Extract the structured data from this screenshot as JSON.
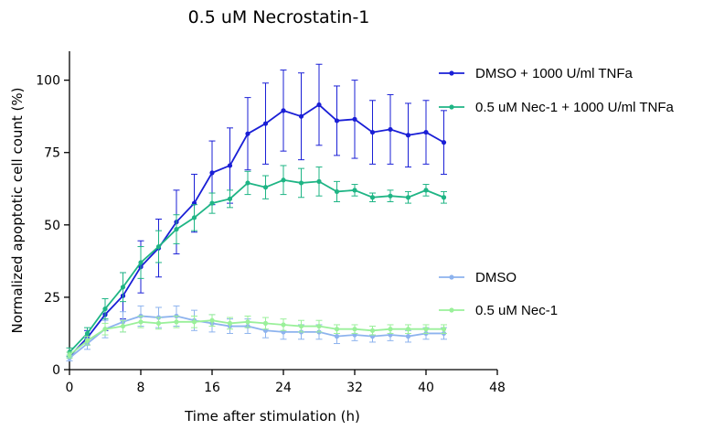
{
  "chart_data": {
    "type": "line",
    "title": "0.5 uM Necrostatin-1",
    "xlabel": "Time after stimulation (h)",
    "ylabel": "Normalized apoptotic cell count (%)",
    "xlim": [
      0,
      48
    ],
    "ylim": [
      0,
      110
    ],
    "xticks": [
      0,
      8,
      16,
      24,
      32,
      40,
      48
    ],
    "yticks": [
      0,
      25,
      50,
      75,
      100
    ],
    "grid": false,
    "legend_position": "right",
    "x": [
      0,
      2,
      4,
      6,
      8,
      10,
      12,
      14,
      16,
      18,
      20,
      22,
      24,
      26,
      28,
      30,
      32,
      34,
      36,
      38,
      40,
      42
    ],
    "series": [
      {
        "name": "DMSO + 1000 U/ml TNFa",
        "color": "#1a1fd6",
        "values": [
          4.5,
          11,
          19,
          25.5,
          35.5,
          42,
          51,
          57.5,
          68,
          70.5,
          81.5,
          85,
          89.5,
          87.5,
          91.5,
          86,
          86.5,
          82,
          83,
          81,
          82,
          78.5
        ],
        "errors": [
          1.5,
          2.5,
          5.5,
          8,
          9,
          10,
          11,
          10,
          11,
          13,
          12.5,
          14,
          14,
          15,
          14,
          12,
          13.5,
          11,
          12,
          11,
          11,
          11
        ]
      },
      {
        "name": "0.5 uM Nec-1 + 1000 U/ml TNFa",
        "color": "#1fb585",
        "values": [
          6,
          12.5,
          21,
          28.5,
          37,
          42.5,
          48.5,
          52.5,
          57.5,
          59,
          64.5,
          63,
          65.5,
          64.5,
          65,
          61.5,
          62,
          59.5,
          60,
          59.5,
          62,
          59.5
        ],
        "errors": [
          1.5,
          2,
          3.5,
          5,
          5.5,
          5.5,
          5,
          4.5,
          3.5,
          3,
          4,
          4,
          5,
          5,
          5,
          3.5,
          2,
          1.5,
          2,
          2,
          2,
          2
        ]
      },
      {
        "name": "DMSO",
        "color": "#8db3ee",
        "values": [
          4,
          9,
          14,
          16.5,
          18.5,
          18,
          18.5,
          17,
          16,
          15,
          15,
          13.5,
          13,
          13,
          13,
          11.5,
          12,
          11.5,
          12,
          11.5,
          12.5,
          12.5
        ],
        "errors": [
          1,
          2,
          3,
          3.5,
          3.5,
          3.5,
          3.5,
          3.5,
          3,
          2.5,
          2.5,
          2.5,
          2.5,
          2.5,
          2.5,
          2.5,
          2,
          2,
          2,
          2,
          2,
          2
        ]
      },
      {
        "name": "0.5 uM Nec-1",
        "color": "#9af09a",
        "values": [
          5,
          10,
          14,
          15,
          16.5,
          16,
          16.5,
          16.5,
          17,
          16,
          16.5,
          16,
          15.5,
          15,
          15,
          14,
          14,
          13.5,
          14,
          14,
          14,
          14
        ],
        "errors": [
          1,
          1.5,
          2,
          2,
          2,
          2,
          2,
          2,
          2,
          2,
          2,
          2,
          2,
          2,
          2,
          1.5,
          1.5,
          1.5,
          1.5,
          1.5,
          1.5,
          1.5
        ]
      }
    ]
  }
}
